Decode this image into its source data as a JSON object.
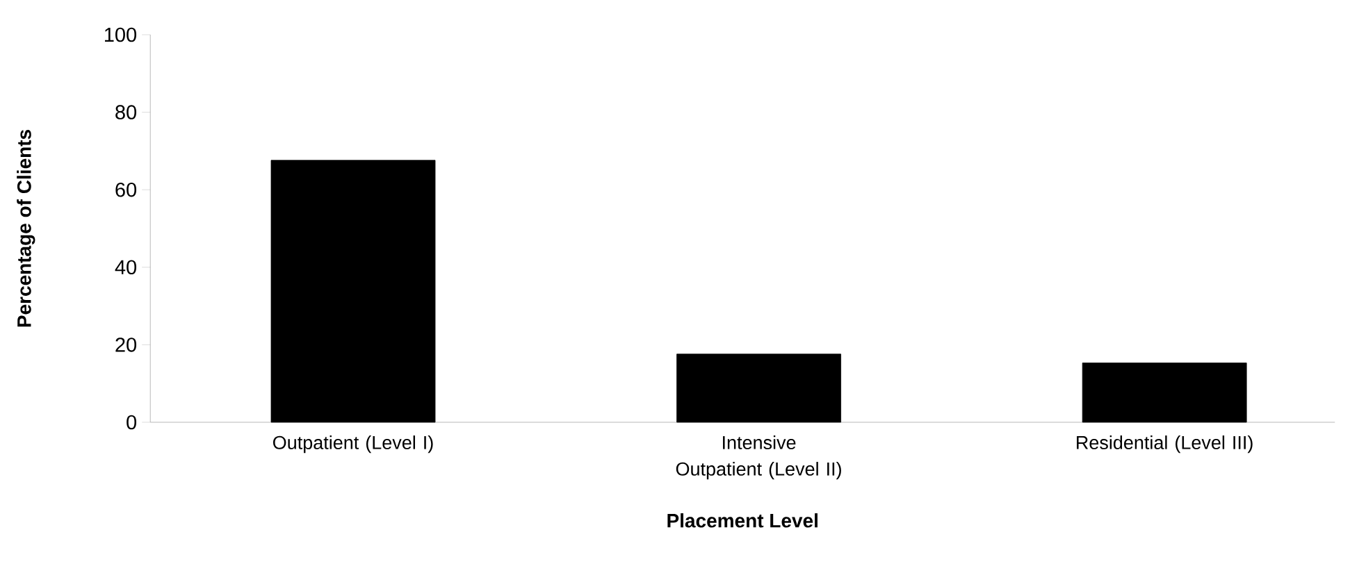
{
  "chart_data": {
    "type": "bar",
    "categories": [
      "Outpatient (Level I)",
      "Intensive Outpatient (Level II)",
      "Residential (Level III)"
    ],
    "values": [
      67.6,
      17.6,
      15.3
    ],
    "color": "#000000",
    "xlabel": "Placement Level",
    "ylabel": "Percentage of Clients",
    "ylim": [
      0,
      100
    ],
    "yticks": [
      0,
      20,
      40,
      60,
      80,
      100
    ]
  }
}
